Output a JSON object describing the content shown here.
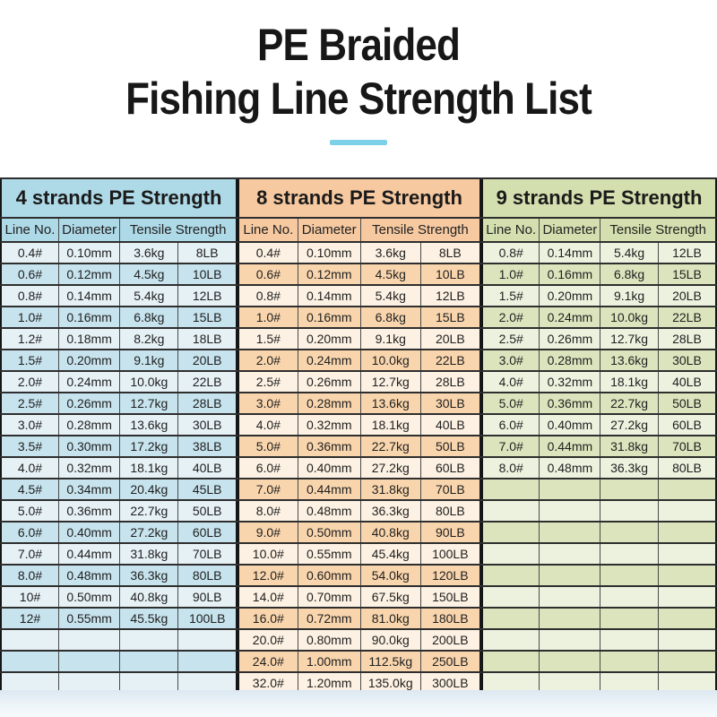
{
  "page": {
    "title_line1": "PE Braided",
    "title_line2": "Fishing Line Strength List",
    "accent_underline_color": "#7ed0e6",
    "background_color": "#ffffff",
    "footer_background_color": "#e9f1f7"
  },
  "tables": [
    {
      "id": "4-strands",
      "title": "4 strands PE Strength",
      "columns": {
        "line_no": "Line No.",
        "diameter": "Diameter",
        "tensile": "Tensile Strength"
      },
      "theme": {
        "header_bg": "#aed9e7",
        "row_light": "#e6f1f6",
        "row_dark": "#c7e3ed"
      },
      "rows": [
        [
          "0.4#",
          "0.10mm",
          "3.6kg",
          "8LB"
        ],
        [
          "0.6#",
          "0.12mm",
          "4.5kg",
          "10LB"
        ],
        [
          "0.8#",
          "0.14mm",
          "5.4kg",
          "12LB"
        ],
        [
          "1.0#",
          "0.16mm",
          "6.8kg",
          "15LB"
        ],
        [
          "1.2#",
          "0.18mm",
          "8.2kg",
          "18LB"
        ],
        [
          "1.5#",
          "0.20mm",
          "9.1kg",
          "20LB"
        ],
        [
          "2.0#",
          "0.24mm",
          "10.0kg",
          "22LB"
        ],
        [
          "2.5#",
          "0.26mm",
          "12.7kg",
          "28LB"
        ],
        [
          "3.0#",
          "0.28mm",
          "13.6kg",
          "30LB"
        ],
        [
          "3.5#",
          "0.30mm",
          "17.2kg",
          "38LB"
        ],
        [
          "4.0#",
          "0.32mm",
          "18.1kg",
          "40LB"
        ],
        [
          "4.5#",
          "0.34mm",
          "20.4kg",
          "45LB"
        ],
        [
          "5.0#",
          "0.36mm",
          "22.7kg",
          "50LB"
        ],
        [
          "6.0#",
          "0.40mm",
          "27.2kg",
          "60LB"
        ],
        [
          "7.0#",
          "0.44mm",
          "31.8kg",
          "70LB"
        ],
        [
          "8.0#",
          "0.48mm",
          "36.3kg",
          "80LB"
        ],
        [
          "10#",
          "0.50mm",
          "40.8kg",
          "90LB"
        ],
        [
          "12#",
          "0.55mm",
          "45.5kg",
          "100LB"
        ]
      ],
      "empty_rows": 3
    },
    {
      "id": "8-strands",
      "title": "8 strands PE Strength",
      "columns": {
        "line_no": "Line No.",
        "diameter": "Diameter",
        "tensile": "Tensile Strength"
      },
      "theme": {
        "header_bg": "#f6c9a0",
        "row_light": "#fcf1e2",
        "row_dark": "#f8d5ad"
      },
      "rows": [
        [
          "0.4#",
          "0.10mm",
          "3.6kg",
          "8LB"
        ],
        [
          "0.6#",
          "0.12mm",
          "4.5kg",
          "10LB"
        ],
        [
          "0.8#",
          "0.14mm",
          "5.4kg",
          "12LB"
        ],
        [
          "1.0#",
          "0.16mm",
          "6.8kg",
          "15LB"
        ],
        [
          "1.5#",
          "0.20mm",
          "9.1kg",
          "20LB"
        ],
        [
          "2.0#",
          "0.24mm",
          "10.0kg",
          "22LB"
        ],
        [
          "2.5#",
          "0.26mm",
          "12.7kg",
          "28LB"
        ],
        [
          "3.0#",
          "0.28mm",
          "13.6kg",
          "30LB"
        ],
        [
          "4.0#",
          "0.32mm",
          "18.1kg",
          "40LB"
        ],
        [
          "5.0#",
          "0.36mm",
          "22.7kg",
          "50LB"
        ],
        [
          "6.0#",
          "0.40mm",
          "27.2kg",
          "60LB"
        ],
        [
          "7.0#",
          "0.44mm",
          "31.8kg",
          "70LB"
        ],
        [
          "8.0#",
          "0.48mm",
          "36.3kg",
          "80LB"
        ],
        [
          "9.0#",
          "0.50mm",
          "40.8kg",
          "90LB"
        ],
        [
          "10.0#",
          "0.55mm",
          "45.4kg",
          "100LB"
        ],
        [
          "12.0#",
          "0.60mm",
          "54.0kg",
          "120LB"
        ],
        [
          "14.0#",
          "0.70mm",
          "67.5kg",
          "150LB"
        ],
        [
          "16.0#",
          "0.72mm",
          "81.0kg",
          "180LB"
        ],
        [
          "20.0#",
          "0.80mm",
          "90.0kg",
          "200LB"
        ],
        [
          "24.0#",
          "1.00mm",
          "112.5kg",
          "250LB"
        ],
        [
          "32.0#",
          "1.20mm",
          "135.0kg",
          "300LB"
        ]
      ],
      "empty_rows": 0
    },
    {
      "id": "9-strands",
      "title": "9 strands PE Strength",
      "columns": {
        "line_no": "Line No.",
        "diameter": "Diameter",
        "tensile": "Tensile Strength"
      },
      "theme": {
        "header_bg": "#d3dfae",
        "row_light": "#edf2df",
        "row_dark": "#dbe4bd"
      },
      "rows": [
        [
          "0.8#",
          "0.14mm",
          "5.4kg",
          "12LB"
        ],
        [
          "1.0#",
          "0.16mm",
          "6.8kg",
          "15LB"
        ],
        [
          "1.5#",
          "0.20mm",
          "9.1kg",
          "20LB"
        ],
        [
          "2.0#",
          "0.24mm",
          "10.0kg",
          "22LB"
        ],
        [
          "2.5#",
          "0.26mm",
          "12.7kg",
          "28LB"
        ],
        [
          "3.0#",
          "0.28mm",
          "13.6kg",
          "30LB"
        ],
        [
          "4.0#",
          "0.32mm",
          "18.1kg",
          "40LB"
        ],
        [
          "5.0#",
          "0.36mm",
          "22.7kg",
          "50LB"
        ],
        [
          "6.0#",
          "0.40mm",
          "27.2kg",
          "60LB"
        ],
        [
          "7.0#",
          "0.44mm",
          "31.8kg",
          "70LB"
        ],
        [
          "8.0#",
          "0.48mm",
          "36.3kg",
          "80LB"
        ]
      ],
      "empty_rows": 10
    }
  ]
}
